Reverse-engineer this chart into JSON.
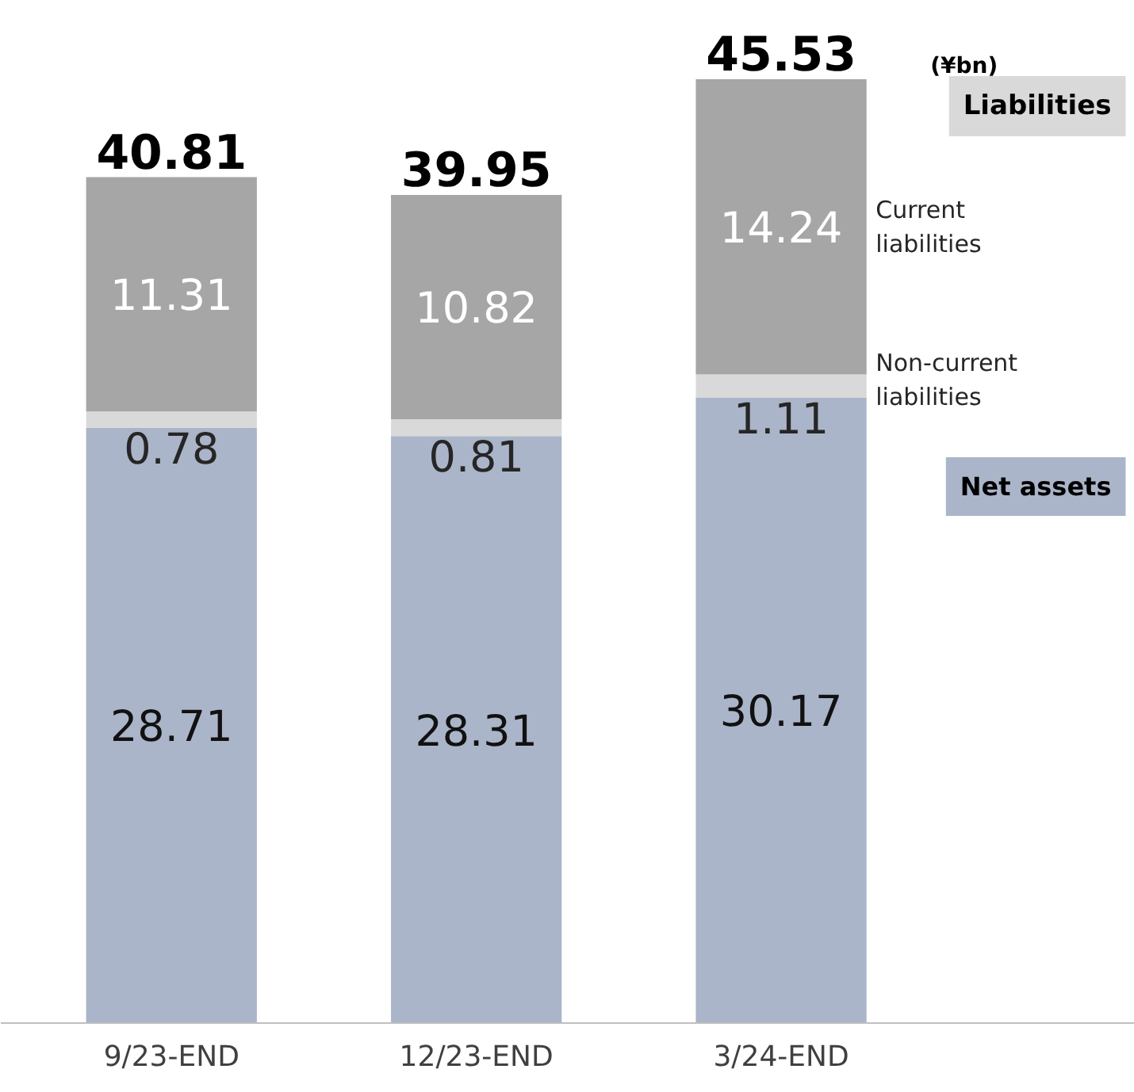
{
  "chart_data": {
    "type": "bar",
    "stacked": true,
    "data_labels": true,
    "categories": [
      "9/23-END",
      "12/23-END",
      "3/24-END"
    ],
    "series": [
      {
        "name": "Net assets",
        "color": "#abb5c9",
        "values": [
          28.71,
          28.31,
          30.17
        ]
      },
      {
        "name": "Non-current liabilities",
        "color": "#d9d9d9",
        "values": [
          0.78,
          0.81,
          1.11
        ]
      },
      {
        "name": "Current liabilities",
        "color": "#a6a6a6",
        "values": [
          11.31,
          10.82,
          14.24
        ]
      }
    ],
    "totals": [
      "40.81",
      "39.95",
      "45.53"
    ],
    "annotations": [
      "(¥bn)",
      "Liabilities"
    ]
  }
}
